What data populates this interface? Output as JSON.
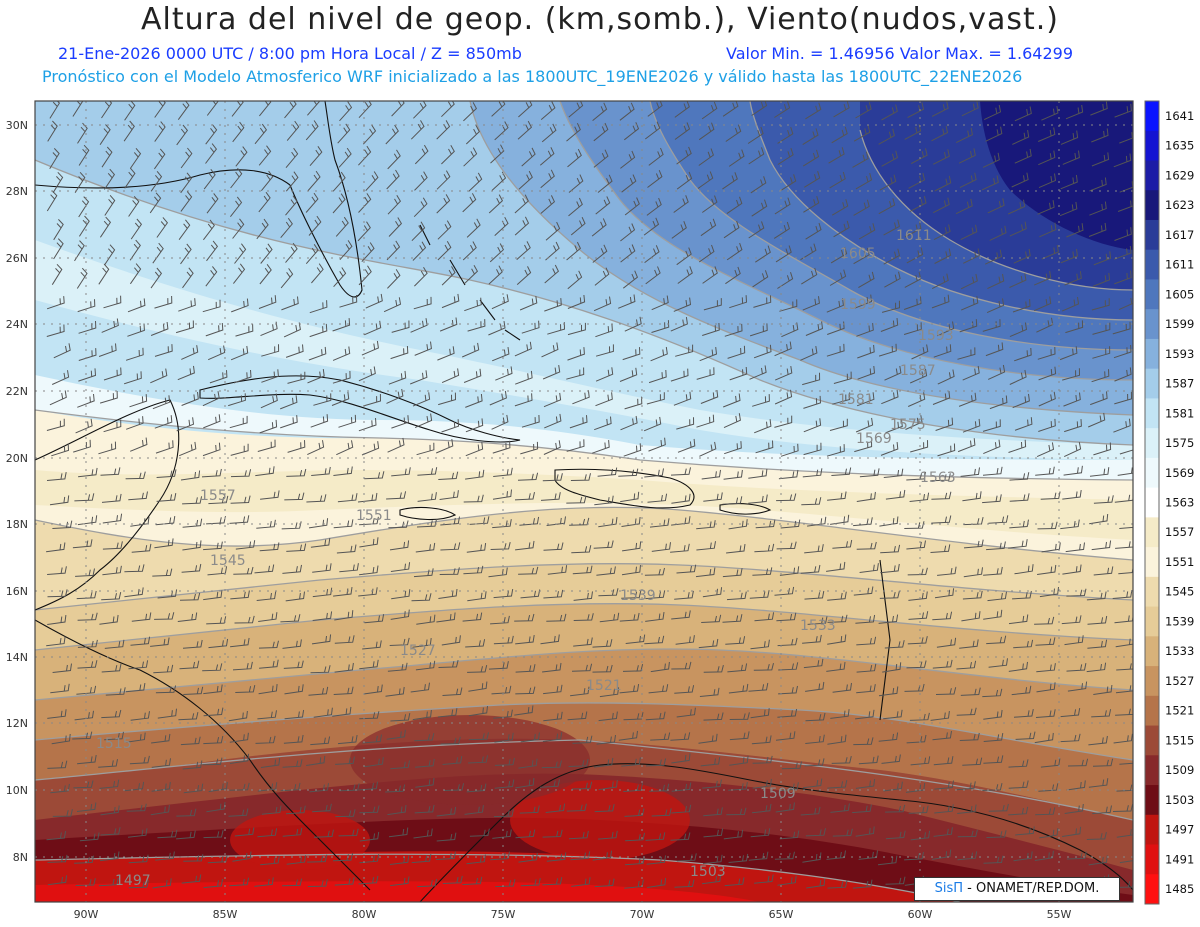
{
  "header": {
    "title": "Altura del nivel de geop. (km,somb.), Viento(nudos,vast.)",
    "date_level": "21-Ene-2026  0000 UTC / 8:00 pm Hora Local / Z = 850mb",
    "min_max": "Valor Min. = 1.46956  Valor Max. = 1.64299",
    "model_info": "Pronóstico con el Modelo Atmosferico WRF inicializado a las 1800UTC_19ENE2026 y válido hasta las  1800UTC_22ENE2026"
  },
  "map": {
    "lat_labels": [
      "30N",
      "28N",
      "26N",
      "24N",
      "22N",
      "20N",
      "18N",
      "16N",
      "14N",
      "12N",
      "10N",
      "8N"
    ],
    "lon_labels": [
      "90W",
      "85W",
      "80W",
      "75W",
      "70W",
      "65W",
      "60W",
      "55W"
    ],
    "contour_labels": [
      "1611",
      "1605",
      "1599",
      "1593",
      "1587",
      "1581",
      "1575",
      "1569",
      "1563",
      "1557",
      "1551",
      "1545",
      "1539",
      "1533",
      "1527",
      "1521",
      "1515",
      "1509",
      "1503",
      "1497"
    ],
    "wind_barbs": "gray"
  },
  "colorbar": {
    "levels": [
      "1641",
      "1635",
      "1629",
      "1623",
      "1617",
      "1611",
      "1605",
      "1599",
      "1593",
      "1587",
      "1581",
      "1575",
      "1569",
      "1563",
      "1557",
      "1551",
      "1545",
      "1539",
      "1533",
      "1527",
      "1521",
      "1515",
      "1509",
      "1503",
      "1497",
      "1491",
      "1485"
    ],
    "colors": [
      "#0a14ff",
      "#1414d2",
      "#1c1ca6",
      "#18187a",
      "#2a3c98",
      "#3b5aac",
      "#4f77bd",
      "#6993cd",
      "#86b1dd",
      "#a4cdea",
      "#c2e4f4",
      "#dbf1f8",
      "#eef9fc",
      "#ffffff",
      "#f5ebc8",
      "#fbf3dc",
      "#eedbae",
      "#e6cc98",
      "#d8b27a",
      "#c89460",
      "#b5744a",
      "#9c4a37",
      "#87292b",
      "#6e0d16",
      "#c01510",
      "#e01010",
      "#ff1010"
    ]
  },
  "credit": {
    "brand": "SisΠ",
    "org": " - ONAMET/REP.DOM."
  }
}
